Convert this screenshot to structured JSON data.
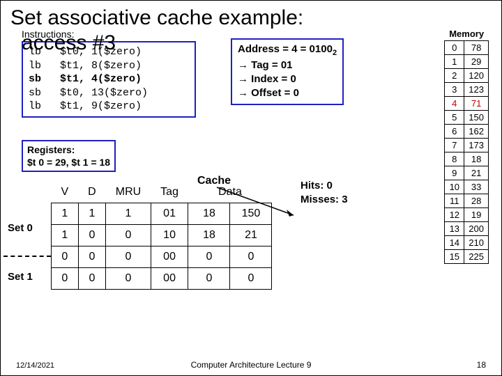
{
  "title": "Set associative cache example:",
  "access_label": "access #3",
  "instr_label": "Instructions:",
  "instructions": [
    {
      "op": "lb",
      "reg": "$t0,",
      "arg": "1($zero)",
      "bold": false
    },
    {
      "op": "lb",
      "reg": "$t1,",
      "arg": "8($zero)",
      "bold": false
    },
    {
      "op": "sb",
      "reg": "$t1,",
      "arg": "4($zero)",
      "bold": true
    },
    {
      "op": "sb",
      "reg": "$t0,",
      "arg": "13($zero)",
      "bold": false
    },
    {
      "op": "lb",
      "reg": "$t1,",
      "arg": "9($zero)",
      "bold": false
    }
  ],
  "addr": {
    "l1a": "Address = 4 = 0100",
    "l1sub": "2",
    "l2": "→ Tag = 01",
    "l3": "→ Index = 0",
    "l4": "→ Offset = 0"
  },
  "memory_title": "Memory",
  "memory": [
    {
      "i": "0",
      "v": "78"
    },
    {
      "i": "1",
      "v": "29"
    },
    {
      "i": "2",
      "v": "120"
    },
    {
      "i": "3",
      "v": "123"
    },
    {
      "i": "4",
      "v": "71",
      "hl": true
    },
    {
      "i": "5",
      "v": "150"
    },
    {
      "i": "6",
      "v": "162"
    },
    {
      "i": "7",
      "v": "173"
    },
    {
      "i": "8",
      "v": "18"
    },
    {
      "i": "9",
      "v": "21"
    },
    {
      "i": "10",
      "v": "33"
    },
    {
      "i": "11",
      "v": "28"
    },
    {
      "i": "12",
      "v": "19"
    },
    {
      "i": "13",
      "v": "200"
    },
    {
      "i": "14",
      "v": "210"
    },
    {
      "i": "15",
      "v": "225"
    }
  ],
  "registers": {
    "label": "Registers:",
    "line": "$t 0 = 29, $t 1 = 18"
  },
  "cache": {
    "title": "Cache",
    "cols": [
      "V",
      "D",
      "MRU",
      "Tag",
      "Data",
      "Data2"
    ],
    "headers": [
      "V",
      "D",
      "MRU",
      "Tag",
      "Data"
    ],
    "rows": [
      [
        "1",
        "1",
        "1",
        "01",
        "18",
        "150"
      ],
      [
        "1",
        "0",
        "0",
        "10",
        "18",
        "21"
      ],
      [
        "0",
        "0",
        "0",
        "00",
        "0",
        "0"
      ],
      [
        "0",
        "0",
        "0",
        "00",
        "0",
        "0"
      ]
    ],
    "set0": "Set 0",
    "set1": "Set 1"
  },
  "hits": {
    "l1": "Hits:  0",
    "l2": "Misses: 3"
  },
  "footer": {
    "date": "12/14/2021",
    "center": "Computer Architecture Lecture 9",
    "page": "18"
  }
}
